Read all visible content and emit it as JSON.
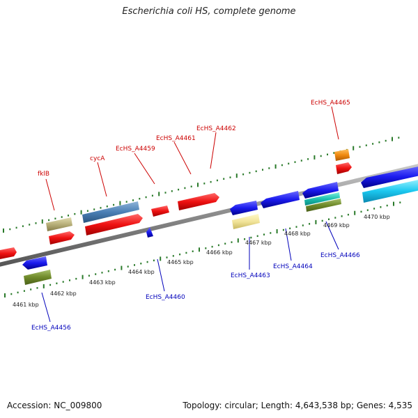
{
  "title": "Escherichia coli HS, complete genome",
  "footer": {
    "accession": "Accession: NC_009800",
    "summary": "Topology: circular; Length: 4,643,538 bp; Genes: 4,535"
  },
  "ticks": [
    "4461 kbp",
    "4462 kbp",
    "4463 kbp",
    "4464 kbp",
    "4465 kbp",
    "4466 kbp",
    "4467 kbp",
    "4468 kbp",
    "4469 kbp",
    "4470 kbp"
  ],
  "gene_labels": {
    "fklB": "fklB",
    "cycA": "cycA",
    "EcHS_A4459": "EcHS_A4459",
    "EcHS_A4461": "EcHS_A4461",
    "EcHS_A4462": "EcHS_A4462",
    "EcHS_A4465": "EcHS_A4465",
    "EcHS_A4456": "EcHS_A4456",
    "EcHS_A4460": "EcHS_A4460",
    "EcHS_A4463": "EcHS_A4463",
    "EcHS_A4464": "EcHS_A4464",
    "EcHS_A4466": "EcHS_A4466"
  },
  "colors": {
    "forward_label": "#cc0000",
    "reverse_label": "#0000bb",
    "forward_gene": "#ee1111",
    "reverse_gene": "#1a1aee",
    "backbone": "#8a8a8a",
    "dots": "#2a7a2a"
  }
}
